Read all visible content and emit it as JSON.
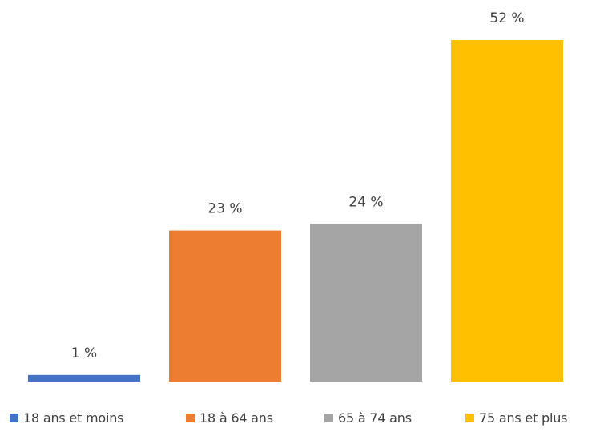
{
  "chart_data": {
    "type": "bar",
    "title": "",
    "xlabel": "",
    "ylabel": "",
    "categories": [
      "18 ans et moins",
      "18 à 64 ans",
      "65 à 74 ans",
      "75 ans et plus"
    ],
    "values": [
      1,
      23,
      24,
      52
    ],
    "data_labels": [
      "1 %",
      "23 %",
      "24 %",
      "52 %"
    ],
    "colors": [
      "#4472C4",
      "#ED7D31",
      "#A5A5A5",
      "#FFC000"
    ],
    "ylim": [
      0,
      52
    ],
    "grid": false,
    "legend_position": "bottom"
  }
}
